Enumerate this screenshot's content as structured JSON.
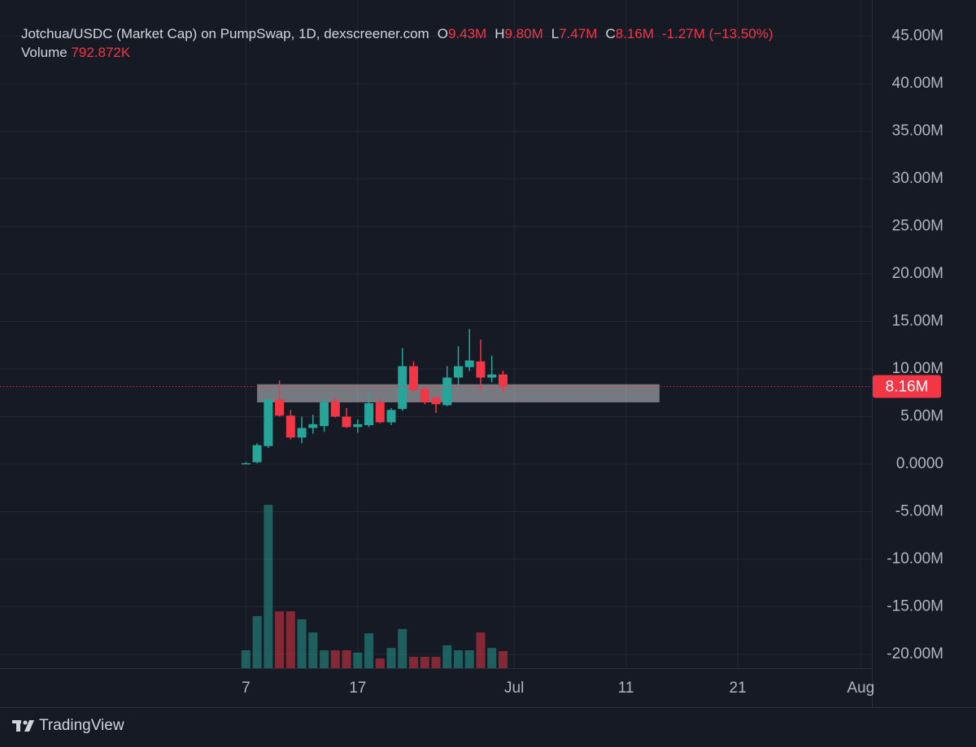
{
  "chart_data": {
    "type": "candlestick",
    "title": "Jotchua/USDC (Market Cap) on PumpSwap, 1D, dexscreener.com",
    "ohlc_legend": [
      {
        "key": "O",
        "text": "9.43M"
      },
      {
        "key": "H",
        "text": "9.80M"
      },
      {
        "key": "L",
        "text": "7.47M"
      },
      {
        "key": "C",
        "text": "8.16M"
      }
    ],
    "change": "-1.27M (−13.50%)",
    "volume_legend": {
      "name": "Volume",
      "text": "792.872K"
    },
    "x": [
      "Jun 7",
      "Jun 8",
      "Jun 9",
      "Jun 10",
      "Jun 11",
      "Jun 12",
      "Jun 13",
      "Jun 14",
      "Jun 15",
      "Jun 16",
      "Jun 17",
      "Jun 18",
      "Jun 19",
      "Jun 20",
      "Jun 21",
      "Jun 22",
      "Jun 23",
      "Jun 24",
      "Jun 25",
      "Jun 26",
      "Jun 27",
      "Jun 28",
      "Jun 29",
      "Jun 30"
    ],
    "open": [
      0.05,
      0.2,
      1.9,
      6.8,
      5.1,
      2.8,
      3.8,
      4.0,
      6.6,
      5.0,
      3.9,
      4.1,
      6.5,
      4.4,
      5.8,
      10.3,
      7.9,
      7.0,
      6.2,
      9.1,
      10.2,
      10.8,
      9.1,
      9.43
    ],
    "high": [
      0.2,
      2.2,
      7.2,
      8.8,
      5.7,
      5.0,
      5.2,
      6.9,
      7.0,
      5.9,
      4.7,
      7.6,
      6.9,
      5.9,
      12.2,
      10.8,
      8.1,
      7.2,
      10.3,
      12.4,
      14.2,
      13.1,
      11.4,
      9.8
    ],
    "low": [
      0,
      0.1,
      1.7,
      5.0,
      2.6,
      2.2,
      3.2,
      3.4,
      4.9,
      3.8,
      3.3,
      3.9,
      4.3,
      4.1,
      5.6,
      7.6,
      6.3,
      5.4,
      6.1,
      8.0,
      9.8,
      7.7,
      8.6,
      7.47
    ],
    "close": [
      0.1,
      2.0,
      6.8,
      5.1,
      2.8,
      3.8,
      4.2,
      6.5,
      5.0,
      3.9,
      4.2,
      6.4,
      4.4,
      5.7,
      10.3,
      7.8,
      6.5,
      6.3,
      9.1,
      10.3,
      10.9,
      9.1,
      9.43,
      8.16
    ],
    "volume": [
      830000,
      2420000,
      7590000,
      2640000,
      2640000,
      2270000,
      1660000,
      830000,
      830000,
      830000,
      720000,
      1620000,
      450000,
      940000,
      1820000,
      530000,
      530000,
      530000,
      1060000,
      830000,
      830000,
      1660000,
      940000,
      792872
    ],
    "up_color": "#26a69a",
    "down_color": "#f23645",
    "xlim": [
      "May 16",
      "Aug 2"
    ],
    "xticks": [
      {
        "value": "Jun 7",
        "label": "7"
      },
      {
        "value": "Jun 17",
        "label": "17"
      },
      {
        "value": "Jul 1",
        "label": "Jul"
      },
      {
        "value": "Jul 11",
        "label": "11"
      },
      {
        "value": "Jul 21",
        "label": "21"
      },
      {
        "value": "Aug 1",
        "label": "Aug"
      }
    ],
    "ylim": [
      -21.45,
      47.09
    ],
    "yticks": [
      {
        "value": 45,
        "label": "45.00M"
      },
      {
        "value": 40,
        "label": "40.00M"
      },
      {
        "value": 35,
        "label": "35.00M"
      },
      {
        "value": 30,
        "label": "30.00M"
      },
      {
        "value": 25,
        "label": "25.00M"
      },
      {
        "value": 20,
        "label": "20.00M"
      },
      {
        "value": 15,
        "label": "15.00M"
      },
      {
        "value": 10,
        "label": "10.00M"
      },
      {
        "value": 5,
        "label": "5.00M"
      },
      {
        "value": 0,
        "label": "0.0000"
      },
      {
        "value": -5,
        "label": "-5.00M"
      },
      {
        "value": -10,
        "label": "-10.00M"
      },
      {
        "value": -15,
        "label": "-15.00M"
      },
      {
        "value": -20,
        "label": "-20.00M"
      }
    ],
    "last_price": {
      "value": 8.16,
      "label": "8.16M"
    },
    "zone": {
      "x": [
        "Jun 8",
        "Jul 14"
      ],
      "ylim": [
        6.5,
        8.4
      ]
    },
    "grid": true,
    "footer": "TradingView"
  }
}
